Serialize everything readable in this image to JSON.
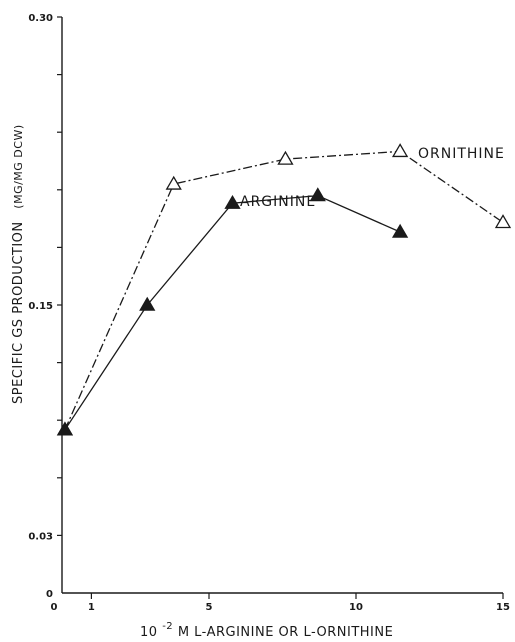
{
  "chart_data": {
    "type": "line",
    "title": "",
    "xlabel": "10^-2 M L-ARGININE OR L-ORNITHINE",
    "xlabel_parts": {
      "base": "10",
      "exponent": "-2",
      "rest": " M L-ARGININE OR L-ORNITHINE"
    },
    "ylabel": "SPECIFIC GS PRODUCTION",
    "ylabel_unit": "(MG/MG DCW)",
    "xlim": [
      0,
      15
    ],
    "ylim": [
      0,
      0.3
    ],
    "y_ticks": [
      {
        "value": 0,
        "label": "0"
      },
      {
        "value": 0.03,
        "label": "0.03"
      },
      {
        "value": 0.15,
        "label": "0.15"
      },
      {
        "value": 0.3,
        "label": "0.30"
      }
    ],
    "y_minor_ticks": [
      0.03,
      0.06,
      0.09,
      0.12,
      0.15,
      0.18,
      0.21,
      0.24,
      0.27,
      0.3
    ],
    "x_ticks": [
      {
        "value": 0,
        "label": "0"
      },
      {
        "value": 1,
        "label": "1"
      },
      {
        "value": 5,
        "label": "5"
      },
      {
        "value": 10,
        "label": "10"
      },
      {
        "value": 15,
        "label": "15"
      }
    ],
    "grid": false,
    "legend": "inline labels",
    "series": [
      {
        "name": "ORNITHINE",
        "marker": "open-triangle",
        "line_style": "dash-dot",
        "x": [
          0.1,
          3.8,
          7.6,
          11.5,
          15.0
        ],
        "y": [
          0.085,
          0.213,
          0.226,
          0.23,
          0.193
        ]
      },
      {
        "name": "ARGININE",
        "marker": "filled-triangle",
        "line_style": "solid",
        "x": [
          0.1,
          2.9,
          5.8,
          8.7,
          11.5
        ],
        "y": [
          0.085,
          0.15,
          0.203,
          0.207,
          0.188
        ]
      }
    ]
  }
}
